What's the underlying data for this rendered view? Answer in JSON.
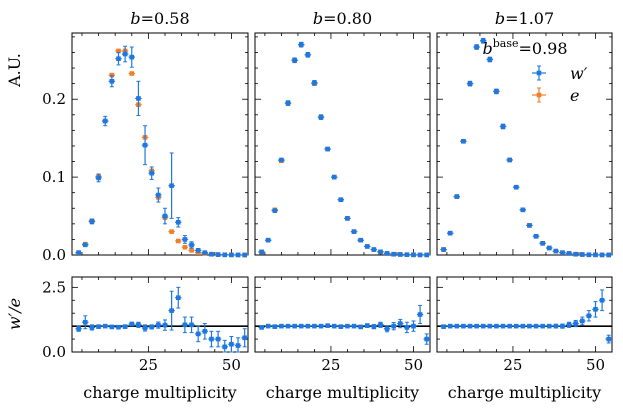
{
  "chart_data": {
    "type": "scatter",
    "description_free": true,
    "ylabel_top": "A.U.",
    "ylabel_bottom": "w′/e",
    "xlabel": "charge multiplicity",
    "b_symbol": "b",
    "legend": {
      "base_label": "b",
      "base_sup": "base",
      "base_value": "=0.98",
      "entries": [
        {
          "name": "w′",
          "color": "#1f77e0"
        },
        {
          "name": "e",
          "color": "#f07f27"
        }
      ]
    },
    "xlim": [
      2,
      55
    ],
    "xticks": [
      25,
      50
    ],
    "ylim_top": [
      0,
      0.285
    ],
    "yticks_top": [
      0.0,
      0.1,
      0.2
    ],
    "ylim_bottom": [
      0,
      2.9
    ],
    "yticks_bottom": [
      0.0,
      2.5
    ],
    "series_colors": {
      "w": "#1f77e0",
      "e": "#f07f27"
    },
    "panels": [
      {
        "b": "=0.58",
        "x": [
          4,
          6,
          8,
          10,
          12,
          14,
          16,
          18,
          20,
          22,
          24,
          26,
          28,
          30,
          32,
          34,
          36,
          38,
          40,
          42,
          44,
          46,
          48,
          50,
          52,
          54
        ],
        "e": [
          0.003,
          0.014,
          0.044,
          0.101,
          0.172,
          0.231,
          0.262,
          0.262,
          0.233,
          0.193,
          0.151,
          0.108,
          0.074,
          0.048,
          0.03,
          0.018,
          0.01,
          0.006,
          0.003,
          0.002,
          0.001,
          0.0006,
          0.0003,
          0.0002,
          0.0001,
          0.0001
        ],
        "w": [
          0.003,
          0.013,
          0.043,
          0.099,
          0.172,
          0.223,
          0.252,
          0.258,
          0.254,
          0.201,
          0.141,
          0.105,
          0.077,
          0.05,
          0.089,
          0.042,
          0.02,
          0.013,
          0.006,
          0.003,
          0.001,
          0.0005,
          0.0002,
          0.0001,
          0.0001,
          0.0
        ],
        "w_err": [
          0.001,
          0.002,
          0.003,
          0.005,
          0.006,
          0.007,
          0.008,
          0.01,
          0.013,
          0.022,
          0.025,
          0.008,
          0.009,
          0.01,
          0.042,
          0.006,
          0.005,
          0.004,
          0.002,
          0.001,
          0.0008,
          0.0005,
          0.0003,
          0.0002,
          0.0001,
          0.0001
        ],
        "ratio": [
          0.9,
          1.15,
          0.95,
          0.98,
          1.0,
          0.97,
          0.96,
          0.98,
          1.08,
          1.05,
          0.93,
          0.97,
          1.04,
          1.04,
          1.6,
          2.1,
          1.05,
          1.05,
          0.7,
          0.8,
          0.5,
          0.5,
          0.2,
          0.3,
          0.25,
          0.55
        ],
        "ratio_err": [
          0.1,
          0.25,
          0.1,
          0.06,
          0.05,
          0.04,
          0.04,
          0.05,
          0.07,
          0.1,
          0.12,
          0.08,
          0.12,
          0.2,
          0.75,
          0.4,
          0.3,
          0.3,
          0.3,
          0.3,
          0.3,
          0.3,
          0.25,
          0.3,
          0.3,
          0.35
        ]
      },
      {
        "b": "=0.80",
        "x": [
          4,
          6,
          8,
          10,
          12,
          14,
          16,
          18,
          20,
          22,
          24,
          26,
          28,
          30,
          32,
          34,
          36,
          38,
          40,
          42,
          44,
          46,
          48,
          50,
          52,
          54
        ],
        "e": [
          0.004,
          0.019,
          0.058,
          0.121,
          0.195,
          0.25,
          0.27,
          0.257,
          0.22,
          0.177,
          0.136,
          0.1,
          0.071,
          0.047,
          0.03,
          0.019,
          0.011,
          0.007,
          0.004,
          0.002,
          0.001,
          0.0007,
          0.0004,
          0.0002,
          0.0001,
          0.0001
        ],
        "w": [
          0.004,
          0.019,
          0.057,
          0.122,
          0.195,
          0.25,
          0.27,
          0.257,
          0.221,
          0.177,
          0.136,
          0.1,
          0.071,
          0.047,
          0.03,
          0.019,
          0.011,
          0.007,
          0.004,
          0.002,
          0.001,
          0.0007,
          0.0004,
          0.0002,
          0.0001,
          0.0001
        ],
        "w_err": [
          0.001,
          0.001,
          0.002,
          0.002,
          0.003,
          0.003,
          0.003,
          0.003,
          0.003,
          0.003,
          0.002,
          0.002,
          0.002,
          0.002,
          0.001,
          0.001,
          0.001,
          0.001,
          0.0008,
          0.0006,
          0.0004,
          0.0003,
          0.0002,
          0.0001,
          0.0001,
          0.0001
        ],
        "ratio": [
          0.95,
          1.0,
          0.98,
          1.0,
          1.0,
          1.0,
          1.0,
          1.0,
          1.0,
          1.0,
          1.02,
          1.0,
          0.98,
          1.0,
          1.0,
          0.97,
          1.02,
          0.98,
          1.05,
          0.9,
          1.0,
          1.1,
          0.95,
          1.0,
          1.45,
          0.5
        ],
        "ratio_err": [
          0.06,
          0.04,
          0.03,
          0.02,
          0.02,
          0.02,
          0.02,
          0.02,
          0.02,
          0.02,
          0.02,
          0.02,
          0.03,
          0.04,
          0.05,
          0.06,
          0.07,
          0.08,
          0.1,
          0.12,
          0.14,
          0.16,
          0.2,
          0.2,
          0.35,
          0.2
        ]
      },
      {
        "b": "=1.07",
        "x": [
          4,
          6,
          8,
          10,
          12,
          14,
          16,
          18,
          20,
          22,
          24,
          26,
          28,
          30,
          32,
          34,
          36,
          38,
          40,
          42,
          44,
          46,
          48,
          50,
          52,
          54
        ],
        "e": [
          0.007,
          0.028,
          0.075,
          0.146,
          0.22,
          0.267,
          0.275,
          0.251,
          0.21,
          0.165,
          0.122,
          0.087,
          0.058,
          0.038,
          0.024,
          0.015,
          0.009,
          0.005,
          0.003,
          0.002,
          0.001,
          0.0006,
          0.0003,
          0.0002,
          0.0001,
          0.0001
        ],
        "w": [
          0.007,
          0.028,
          0.075,
          0.146,
          0.22,
          0.267,
          0.275,
          0.251,
          0.21,
          0.165,
          0.122,
          0.087,
          0.058,
          0.038,
          0.024,
          0.015,
          0.009,
          0.005,
          0.003,
          0.002,
          0.001,
          0.0006,
          0.0003,
          0.0002,
          0.0001,
          0.0001
        ],
        "w_err": [
          0.001,
          0.001,
          0.002,
          0.002,
          0.003,
          0.003,
          0.003,
          0.003,
          0.003,
          0.003,
          0.002,
          0.002,
          0.002,
          0.002,
          0.001,
          0.001,
          0.001,
          0.001,
          0.0008,
          0.0006,
          0.0004,
          0.0003,
          0.0002,
          0.0001,
          0.0001,
          0.0001
        ],
        "ratio": [
          0.98,
          1.0,
          1.0,
          1.0,
          1.0,
          1.0,
          1.0,
          1.0,
          1.0,
          1.0,
          1.0,
          1.0,
          1.0,
          1.0,
          1.0,
          1.0,
          1.0,
          1.0,
          1.0,
          1.05,
          1.1,
          1.2,
          1.4,
          1.65,
          2.0,
          0.5
        ],
        "ratio_err": [
          0.04,
          0.03,
          0.02,
          0.02,
          0.02,
          0.02,
          0.02,
          0.02,
          0.02,
          0.02,
          0.02,
          0.02,
          0.02,
          0.03,
          0.04,
          0.05,
          0.06,
          0.07,
          0.08,
          0.1,
          0.12,
          0.15,
          0.2,
          0.3,
          0.4,
          0.15
        ]
      }
    ]
  }
}
